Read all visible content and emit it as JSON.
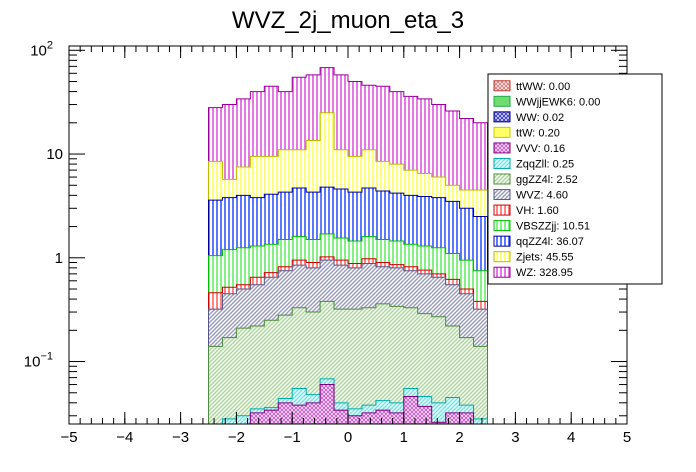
{
  "chart_data": {
    "type": "bar",
    "stacked": true,
    "title": "WVZ_2j_muon_eta_3",
    "xlabel": "",
    "ylabel": "",
    "xlim": [
      -5,
      5
    ],
    "ylim": [
      0.025,
      110
    ],
    "yscale": "log",
    "x_ticks": [
      "-5",
      "-4",
      "-3",
      "-2",
      "-1",
      "0",
      "1",
      "2",
      "3",
      "4",
      "5"
    ],
    "y_ticks": [
      {
        "value": 0.1,
        "base": "10",
        "exp": "-1"
      },
      {
        "value": 1,
        "base": "1",
        "exp": ""
      },
      {
        "value": 10,
        "base": "10",
        "exp": ""
      },
      {
        "value": 100,
        "base": "10",
        "exp": "2"
      }
    ],
    "bin_edges": [
      -2.5,
      -2.25,
      -2.0,
      -1.75,
      -1.5,
      -1.25,
      -1.0,
      -0.75,
      -0.5,
      -0.25,
      0.0,
      0.25,
      0.5,
      0.75,
      1.0,
      1.25,
      1.5,
      1.75,
      2.0,
      2.25,
      2.5
    ],
    "stack_tops": [
      {
        "name": "ttWW",
        "values": [
          0.0001,
          0.0001,
          0.0001,
          0.0001,
          0.0001,
          0.0001,
          0.0001,
          0.0001,
          0.0001,
          0.0001,
          0.0001,
          0.0001,
          0.0001,
          0.0001,
          0.0001,
          0.0001,
          0.0001,
          0.0001,
          0.0001,
          0.0001
        ]
      },
      {
        "name": "WWjjEWK6",
        "values": [
          0.0001,
          0.0001,
          0.0001,
          0.0001,
          0.0001,
          0.0001,
          0.0001,
          0.0001,
          0.0001,
          0.0001,
          0.0001,
          0.0001,
          0.0001,
          0.0001,
          0.0001,
          0.0001,
          0.0001,
          0.0001,
          0.0001,
          0.0001
        ]
      },
      {
        "name": "WW",
        "values": [
          0.0005,
          0.0005,
          0.0005,
          0.0005,
          0.0005,
          0.0005,
          0.0005,
          0.0005,
          0.0005,
          0.0005,
          0.0005,
          0.0005,
          0.0005,
          0.0005,
          0.0005,
          0.0005,
          0.0005,
          0.0005,
          0.0005,
          0.0005
        ]
      },
      {
        "name": "ttW",
        "values": [
          0.005,
          0.006,
          0.006,
          0.012,
          0.024,
          0.018,
          0.015,
          0.02,
          0.014,
          0.012,
          0.012,
          0.012,
          0.017,
          0.02,
          0.024,
          0.018,
          0.01,
          0.012,
          0.009,
          0.006
        ]
      },
      {
        "name": "VVV",
        "values": [
          0.012,
          0.014,
          0.02,
          0.032,
          0.034,
          0.04,
          0.038,
          0.04,
          0.06,
          0.034,
          0.03,
          0.032,
          0.034,
          0.032,
          0.046,
          0.037,
          0.026,
          0.032,
          0.032,
          0.014
        ]
      },
      {
        "name": "ZqqZll",
        "values": [
          0.022,
          0.028,
          0.03,
          0.035,
          0.036,
          0.044,
          0.055,
          0.048,
          0.068,
          0.04,
          0.035,
          0.038,
          0.042,
          0.04,
          0.055,
          0.046,
          0.04,
          0.045,
          0.038,
          0.028
        ]
      },
      {
        "name": "ggZZ4l",
        "values": [
          0.14,
          0.17,
          0.21,
          0.22,
          0.25,
          0.28,
          0.33,
          0.3,
          0.38,
          0.32,
          0.32,
          0.33,
          0.36,
          0.34,
          0.33,
          0.29,
          0.27,
          0.22,
          0.17,
          0.14
        ]
      },
      {
        "name": "WVZ",
        "values": [
          0.32,
          0.45,
          0.5,
          0.55,
          0.65,
          0.75,
          0.85,
          0.8,
          0.95,
          0.85,
          0.8,
          0.88,
          0.82,
          0.8,
          0.75,
          0.7,
          0.65,
          0.55,
          0.45,
          0.32
        ]
      },
      {
        "name": "VH",
        "values": [
          0.46,
          0.52,
          0.55,
          0.65,
          0.72,
          0.82,
          0.95,
          0.9,
          1.02,
          0.95,
          0.88,
          0.98,
          0.9,
          0.86,
          0.82,
          0.76,
          0.7,
          0.62,
          0.5,
          0.38
        ]
      },
      {
        "name": "VBSZZjj",
        "values": [
          1.05,
          1.2,
          1.25,
          1.3,
          1.35,
          1.5,
          1.6,
          1.5,
          1.7,
          1.55,
          1.45,
          1.6,
          1.5,
          1.45,
          1.35,
          1.3,
          1.25,
          1.1,
          0.95,
          0.75
        ]
      },
      {
        "name": "qqZZ4l",
        "values": [
          3.6,
          3.8,
          4.0,
          3.8,
          4.1,
          4.3,
          4.7,
          4.3,
          4.8,
          4.6,
          4.3,
          4.7,
          4.4,
          4.2,
          4.0,
          3.9,
          3.8,
          3.5,
          3.0,
          2.5
        ]
      },
      {
        "name": "Zjets",
        "values": [
          8.5,
          5.7,
          7.5,
          9.5,
          9.5,
          11.0,
          11.0,
          13.5,
          25.0,
          11.0,
          9.5,
          11.0,
          8.5,
          8.0,
          7.0,
          6.5,
          6.0,
          5.0,
          4.5,
          4.5
        ]
      },
      {
        "name": "WZ",
        "values": [
          28.0,
          30.0,
          34.0,
          40.0,
          45.0,
          40.0,
          55.0,
          58.0,
          68.0,
          58.0,
          50.0,
          46.0,
          45.0,
          40.0,
          36.0,
          34.0,
          30.0,
          26.0,
          22.0,
          20.0
        ]
      }
    ],
    "legend": {
      "position": "top-right",
      "entries": [
        {
          "label": "ttWW: 0.00",
          "color": "#c0392b",
          "fill": "#d98888",
          "pattern": "cross"
        },
        {
          "label": "WWjjEWK6: 0.00",
          "color": "#22a845",
          "fill": "#6fdc6f",
          "pattern": "solid"
        },
        {
          "label": "WW: 0.02",
          "color": "#000080",
          "fill": "#4444cc",
          "pattern": "cross"
        },
        {
          "label": "ttW: 0.20",
          "color": "#c8c800",
          "fill": "#ffff66",
          "pattern": "solid"
        },
        {
          "label": "VVV: 0.16",
          "color": "#800080",
          "fill": "#cc66cc",
          "pattern": "cross"
        },
        {
          "label": "ZqqZll: 0.25",
          "color": "#00aaaa",
          "fill": "#66e6e6",
          "pattern": "diag"
        },
        {
          "label": "ggZZ4l: 2.52",
          "color": "#4b8b3b",
          "fill": "#a8d898",
          "pattern": "diag"
        },
        {
          "label": "WVZ: 4.60",
          "color": "#555588",
          "fill": "#9a9ac0",
          "pattern": "diag"
        },
        {
          "label": "VH: 1.60",
          "color": "#cc0000",
          "fill": "#ff6666",
          "pattern": "vert"
        },
        {
          "label": "VBSZZjj: 10.51",
          "color": "#00bb00",
          "fill": "#66ee66",
          "pattern": "vert"
        },
        {
          "label": "qqZZ4l: 36.07",
          "color": "#000099",
          "fill": "#3355ff",
          "pattern": "vert"
        },
        {
          "label": "Zjets: 45.55",
          "color": "#bbbb00",
          "fill": "#ffff55",
          "pattern": "vert"
        },
        {
          "label": "WZ: 328.95",
          "color": "#990099",
          "fill": "#dd55dd",
          "pattern": "vert"
        }
      ]
    }
  }
}
